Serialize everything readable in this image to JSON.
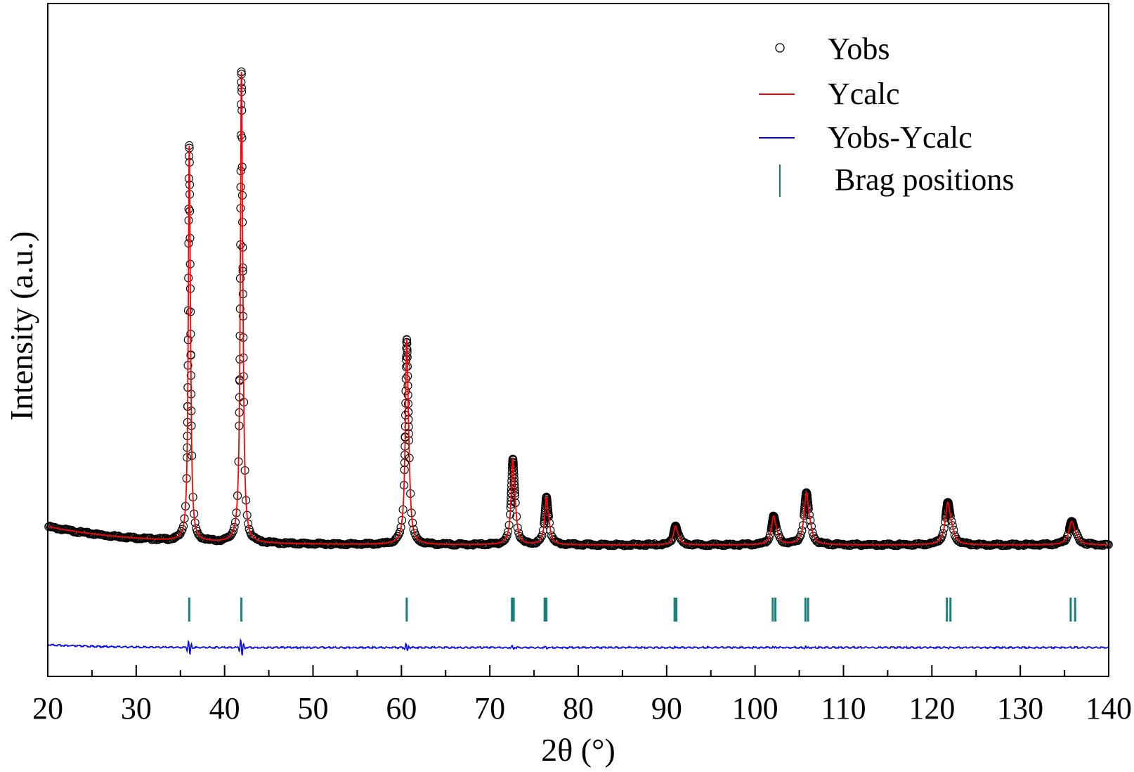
{
  "chart_data": {
    "type": "scatter",
    "title": "",
    "xlabel": "2θ (°)",
    "ylabel": "Intensity (a.u.)",
    "xlim": [
      20,
      140
    ],
    "ylim": [
      -0.25,
      1.03
    ],
    "x_ticks": [
      20,
      30,
      40,
      50,
      60,
      70,
      80,
      90,
      100,
      110,
      120,
      130,
      140
    ],
    "x_tick_labels": [
      "20",
      "30",
      "40",
      "50",
      "60",
      "70",
      "80",
      "90",
      "100",
      "110",
      "120",
      "130",
      "140"
    ],
    "y_ticks_shown": false,
    "grid": false,
    "legend_position": "top-right",
    "colors": {
      "obs": "#000000",
      "calc": "#ff0000",
      "diff": "#0000ff",
      "bragg": "#1b7f7a"
    },
    "background": 0.0,
    "peaks": [
      {
        "x": 36.0,
        "height": 0.82
      },
      {
        "x": 41.9,
        "height": 0.98
      },
      {
        "x": 60.6,
        "height": 0.43
      },
      {
        "x": 72.6,
        "height": 0.18
      },
      {
        "x": 76.4,
        "height": 0.1
      },
      {
        "x": 91.0,
        "height": 0.04
      },
      {
        "x": 102.1,
        "height": 0.06
      },
      {
        "x": 105.8,
        "height": 0.11
      },
      {
        "x": 121.8,
        "height": 0.09
      },
      {
        "x": 135.8,
        "height": 0.05
      }
    ],
    "bragg_positions": [
      36.0,
      41.9,
      60.6,
      72.5,
      72.7,
      76.2,
      76.4,
      90.9,
      91.1,
      102.0,
      102.3,
      105.7,
      106.0,
      121.7,
      122.1,
      135.7,
      136.2
    ],
    "series": [
      {
        "name": "Yobs",
        "marker": "open-circle"
      },
      {
        "name": "Ycalc",
        "style": "line"
      },
      {
        "name": "Yobs-Ycalc",
        "style": "line"
      },
      {
        "name": "Brag positions",
        "style": "tick"
      }
    ]
  }
}
